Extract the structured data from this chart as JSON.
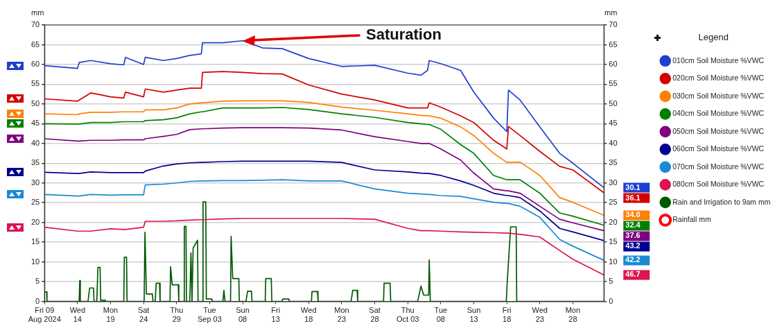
{
  "chart_data": {
    "type": "line",
    "ylabel": "mm",
    "y2label": "mm",
    "legend_title": "Legend",
    "legend": "right",
    "grid": "y",
    "xlim": [
      "2024-08-09",
      "2024-11-01T17:00"
    ],
    "xticks": [
      {
        "value": "2024-08-09",
        "label": "Fri 09\nAug 2024"
      },
      {
        "value": "2024-08-14",
        "label": "Wed\n14"
      },
      {
        "value": "2024-08-19",
        "label": "Mon\n19"
      },
      {
        "value": "2024-08-24",
        "label": "Sat\n24"
      },
      {
        "value": "2024-08-29",
        "label": "Thu\n29"
      },
      {
        "value": "2024-09-03",
        "label": "Tue\nSep 03"
      },
      {
        "value": "2024-09-08",
        "label": "Sun\n08"
      },
      {
        "value": "2024-09-13",
        "label": "Fri\n13"
      },
      {
        "value": "2024-09-18",
        "label": "Wed\n18"
      },
      {
        "value": "2024-09-23",
        "label": "Mon\n23"
      },
      {
        "value": "2024-09-28",
        "label": "Sat\n28"
      },
      {
        "value": "2024-10-03",
        "label": "Thu\nOct 03"
      },
      {
        "value": "2024-10-08",
        "label": "Tue\n08"
      },
      {
        "value": "2024-10-13",
        "label": "Sun\n13"
      },
      {
        "value": "2024-10-18",
        "label": "Fri\n18"
      },
      {
        "value": "2024-10-23",
        "label": "Wed\n23"
      },
      {
        "value": "2024-10-28",
        "label": "Mon\n28"
      }
    ],
    "ylim": [
      0,
      70
    ],
    "yticks": [
      0,
      5,
      10,
      15,
      20,
      25,
      30,
      35,
      40,
      45,
      50,
      55,
      60,
      65,
      70
    ],
    "y2lim": [
      0,
      70
    ],
    "y2ticks": [
      0,
      5,
      10,
      15,
      20,
      25,
      30,
      35,
      40,
      45,
      50,
      55,
      60,
      65,
      70
    ],
    "x": [
      "2024-08-09",
      "2024-08-14",
      "2024-08-14T06:00",
      "2024-08-16",
      "2024-08-19",
      "2024-08-21",
      "2024-08-21T06:00",
      "2024-08-24",
      "2024-08-24T06:00",
      "2024-08-27",
      "2024-08-29",
      "2024-08-31",
      "2024-09-01T18:00",
      "2024-09-01T22:00",
      "2024-09-05",
      "2024-09-08",
      "2024-09-11",
      "2024-09-14",
      "2024-09-18",
      "2024-09-23",
      "2024-09-28",
      "2024-10-03",
      "2024-10-05",
      "2024-10-06",
      "2024-10-06T06:00",
      "2024-10-08",
      "2024-10-11",
      "2024-10-13",
      "2024-10-16",
      "2024-10-18",
      "2024-10-18T06:00",
      "2024-10-20",
      "2024-10-23",
      "2024-10-26",
      "2024-10-28",
      "2024-11-01T17:00"
    ],
    "series": [
      {
        "name": "010cm Soil Moisture %VWC",
        "color": "#1f3fd0",
        "values": [
          59.7,
          59.0,
          60.5,
          61.0,
          60.2,
          59.9,
          61.8,
          60.0,
          61.8,
          61.0,
          61.5,
          62.3,
          62.7,
          65.5,
          65.5,
          66.0,
          64.2,
          64.0,
          61.5,
          59.5,
          59.8,
          57.8,
          57.3,
          58.5,
          61.0,
          60.2,
          58.5,
          53.0,
          46.4,
          43.0,
          53.5,
          51.0,
          44.2,
          37.5,
          35.0,
          28.8
        ]
      },
      {
        "name": "020cm Soil Moisture %VWC",
        "color": "#d40000",
        "values": [
          51.3,
          50.7,
          51.0,
          52.8,
          51.8,
          51.5,
          53.0,
          51.8,
          53.8,
          53.0,
          53.5,
          54.0,
          54.0,
          58.0,
          58.2,
          58.0,
          57.7,
          57.6,
          54.8,
          52.5,
          51.0,
          49.0,
          49.0,
          49.0,
          50.3,
          49.2,
          47.0,
          45.3,
          40.8,
          38.6,
          44.3,
          42.0,
          38.0,
          34.2,
          33.3,
          27.5
        ]
      },
      {
        "name": "030cm Soil Moisture %VWC",
        "color": "#ff8000",
        "values": [
          47.5,
          47.3,
          47.5,
          47.9,
          47.9,
          48.0,
          48.0,
          48.0,
          48.5,
          48.5,
          49.0,
          50.0,
          50.3,
          50.3,
          50.7,
          50.8,
          50.8,
          50.8,
          50.4,
          49.2,
          48.4,
          47.5,
          47.1,
          47.0,
          47.0,
          46.4,
          44.2,
          42.0,
          37.5,
          35.2,
          35.2,
          35.3,
          31.9,
          26.3,
          25.1,
          21.8
        ]
      },
      {
        "name": "040cm Soil Moisture %VWC",
        "color": "#008000",
        "values": [
          45.0,
          44.9,
          44.9,
          45.3,
          45.3,
          45.5,
          45.5,
          45.5,
          45.8,
          46.0,
          46.5,
          47.5,
          48.0,
          48.0,
          49.0,
          49.0,
          49.0,
          49.1,
          48.6,
          47.5,
          46.6,
          45.3,
          45.0,
          44.8,
          44.8,
          43.6,
          39.7,
          37.5,
          31.9,
          30.8,
          30.8,
          30.8,
          27.4,
          22.4,
          21.6,
          19.3
        ]
      },
      {
        "name": "050cm Soil Moisture %VWC",
        "color": "#800080",
        "values": [
          41.2,
          40.6,
          40.6,
          40.8,
          40.8,
          40.9,
          40.9,
          40.9,
          41.2,
          41.8,
          42.3,
          43.5,
          43.7,
          43.7,
          43.9,
          44.0,
          44.0,
          44.0,
          43.9,
          43.4,
          41.7,
          40.5,
          40.0,
          40.0,
          40.0,
          38.6,
          35.8,
          32.5,
          28.5,
          28.0,
          28.0,
          27.4,
          24.1,
          20.8,
          19.9,
          17.9
        ]
      },
      {
        "name": "060cm Soil Moisture %VWC",
        "color": "#000090",
        "values": [
          32.7,
          32.4,
          32.4,
          32.8,
          32.6,
          32.6,
          32.6,
          32.6,
          33.0,
          34.3,
          34.8,
          35.1,
          35.2,
          35.2,
          35.4,
          35.5,
          35.5,
          35.5,
          35.5,
          35.2,
          33.3,
          32.8,
          32.5,
          32.4,
          32.4,
          31.9,
          30.5,
          29.4,
          27.4,
          26.8,
          26.8,
          26.3,
          22.9,
          18.5,
          17.6,
          15.4
        ]
      },
      {
        "name": "070cm Soil Moisture %VWC",
        "color": "#1a8ad4",
        "values": [
          27.1,
          26.7,
          26.7,
          27.1,
          26.9,
          27.0,
          27.0,
          27.0,
          29.5,
          29.7,
          30.0,
          30.4,
          30.5,
          30.5,
          30.6,
          30.6,
          30.7,
          30.8,
          30.5,
          30.5,
          28.5,
          27.4,
          27.2,
          27.1,
          27.1,
          26.8,
          26.6,
          26.0,
          25.1,
          24.8,
          24.8,
          24.1,
          21.3,
          15.7,
          14.0,
          10.4
        ]
      },
      {
        "name": "080cm Soil Moisture %VWC",
        "color": "#dc1450",
        "values": [
          18.8,
          17.8,
          17.8,
          17.8,
          18.4,
          18.2,
          18.2,
          18.8,
          20.3,
          20.3,
          20.4,
          20.6,
          20.7,
          20.7,
          20.9,
          21.0,
          21.0,
          21.0,
          21.0,
          21.0,
          20.8,
          18.5,
          17.9,
          17.9,
          17.9,
          17.8,
          17.6,
          17.5,
          17.4,
          17.3,
          17.3,
          17.0,
          16.3,
          12.9,
          10.7,
          6.7
        ]
      },
      {
        "name": "Rain and Irrigation to 9am mm",
        "color": "#005a00",
        "x": [
          "2024-08-09",
          "2024-08-09T08:00",
          "2024-08-09T09:00",
          "2024-08-14T06:00",
          "2024-08-14T08:00",
          "2024-08-14T10:00",
          "2024-08-15T14:00",
          "2024-08-15T20:00",
          "2024-08-16T10:00",
          "2024-08-16T12:00",
          "2024-08-16T22:00",
          "2024-08-17T02:00",
          "2024-08-17T10:00",
          "2024-08-17T12:00",
          "2024-08-18T04:00",
          "2024-08-18T05:00",
          "2024-08-21T00:00",
          "2024-08-21T02:00",
          "2024-08-21T10:00",
          "2024-08-21T12:00",
          "2024-08-24T02:00",
          "2024-08-24T05:00",
          "2024-08-24T10:00",
          "2024-08-25T08:00",
          "2024-08-25T10:00",
          "2024-08-25T18:00",
          "2024-08-25T22:00",
          "2024-08-26T10:00",
          "2024-08-26T12:00",
          "2024-08-28T00:00",
          "2024-08-28T02:00",
          "2024-08-28T08:00",
          "2024-08-29T06:00",
          "2024-08-29T08:00",
          "2024-08-30T02:00",
          "2024-08-30T04:00",
          "2024-08-30T10:00",
          "2024-08-30T12:00",
          "2024-08-31T00:00",
          "2024-08-31T04:00",
          "2024-08-31T08:00",
          "2024-08-31T12:00",
          "2024-09-01T04:00",
          "2024-09-01T06:00",
          "2024-09-01T22:00",
          "2024-09-02T00:00",
          "2024-09-02T10:00",
          "2024-09-02T12:00",
          "2024-09-03T08:00",
          "2024-09-03T10:00",
          "2024-09-05T00:00",
          "2024-09-05T04:00",
          "2024-09-05T08:00",
          "2024-09-06T04:00",
          "2024-09-06T06:00",
          "2024-09-06T12:00",
          "2024-09-07T10:00",
          "2024-09-07T12:00",
          "2024-09-08T12:00",
          "2024-09-08T18:00",
          "2024-09-09T08:00",
          "2024-09-09T10:00",
          "2024-09-11T10:00",
          "2024-09-11T12:00",
          "2024-09-12T08:00",
          "2024-09-12T10:00",
          "2024-09-13T22:00",
          "2024-09-14T02:00",
          "2024-09-15T00:00",
          "2024-09-15T02:00",
          "2024-09-18T10:00",
          "2024-09-18T12:00",
          "2024-09-19T08:00",
          "2024-09-19T10:00",
          "2024-09-24T10:00",
          "2024-09-24T16:00",
          "2024-09-25T08:00",
          "2024-09-25T10:00",
          "2024-09-29T08:00",
          "2024-09-29T10:00",
          "2024-09-30T08:00",
          "2024-09-30T10:00",
          "2024-10-04T12:00",
          "2024-10-05T00:00",
          "2024-10-05T10:00",
          "2024-10-06T04:00",
          "2024-10-06T06:00",
          "2024-10-06T10:00",
          "2024-10-17T22:00",
          "2024-10-18T02:00",
          "2024-10-18T14:00",
          "2024-10-19T10:00",
          "2024-10-19T12:00",
          "2024-11-01T17:00"
        ],
        "values": [
          2.4,
          2.4,
          0,
          0,
          5.3,
          0,
          0,
          3.4,
          3.4,
          0,
          0,
          8.6,
          8.6,
          0.3,
          0.3,
          0,
          0,
          11.2,
          11.2,
          0,
          0,
          17.5,
          1.9,
          1.9,
          0,
          0,
          4.6,
          4.6,
          0,
          0,
          8.8,
          4.2,
          4.2,
          0,
          0,
          19.0,
          19.0,
          0,
          0,
          12.3,
          0,
          13.5,
          15.5,
          0,
          0,
          25.2,
          25.2,
          0.6,
          0.6,
          0,
          0,
          2.8,
          0,
          0,
          16.5,
          5.8,
          5.8,
          0,
          0,
          2.6,
          2.6,
          0,
          0,
          5.8,
          5.8,
          0,
          0,
          0.6,
          0.6,
          0,
          0,
          2.5,
          2.5,
          0,
          0,
          2.8,
          2.8,
          0,
          0,
          4.6,
          4.6,
          0,
          0,
          3.9,
          1.6,
          1.6,
          10.5,
          0,
          0,
          5.5,
          18.9,
          18.9,
          0,
          0
        ]
      },
      {
        "name": "Rainfall mm",
        "color": "#ff0000",
        "values": [
          null,
          null,
          null,
          null,
          null,
          null,
          null,
          null,
          null,
          null,
          null,
          null,
          null,
          null,
          null,
          null,
          null,
          null,
          null,
          null,
          null,
          null,
          null,
          null,
          null,
          null,
          null,
          null,
          null,
          null,
          null,
          null,
          null,
          null,
          null,
          null
        ]
      }
    ],
    "annotations": [
      "Saturation",
      "30.1",
      "36.1",
      "34.0",
      "32.4",
      "37.6",
      "43.2",
      "42.2",
      "46.7"
    ]
  }
}
